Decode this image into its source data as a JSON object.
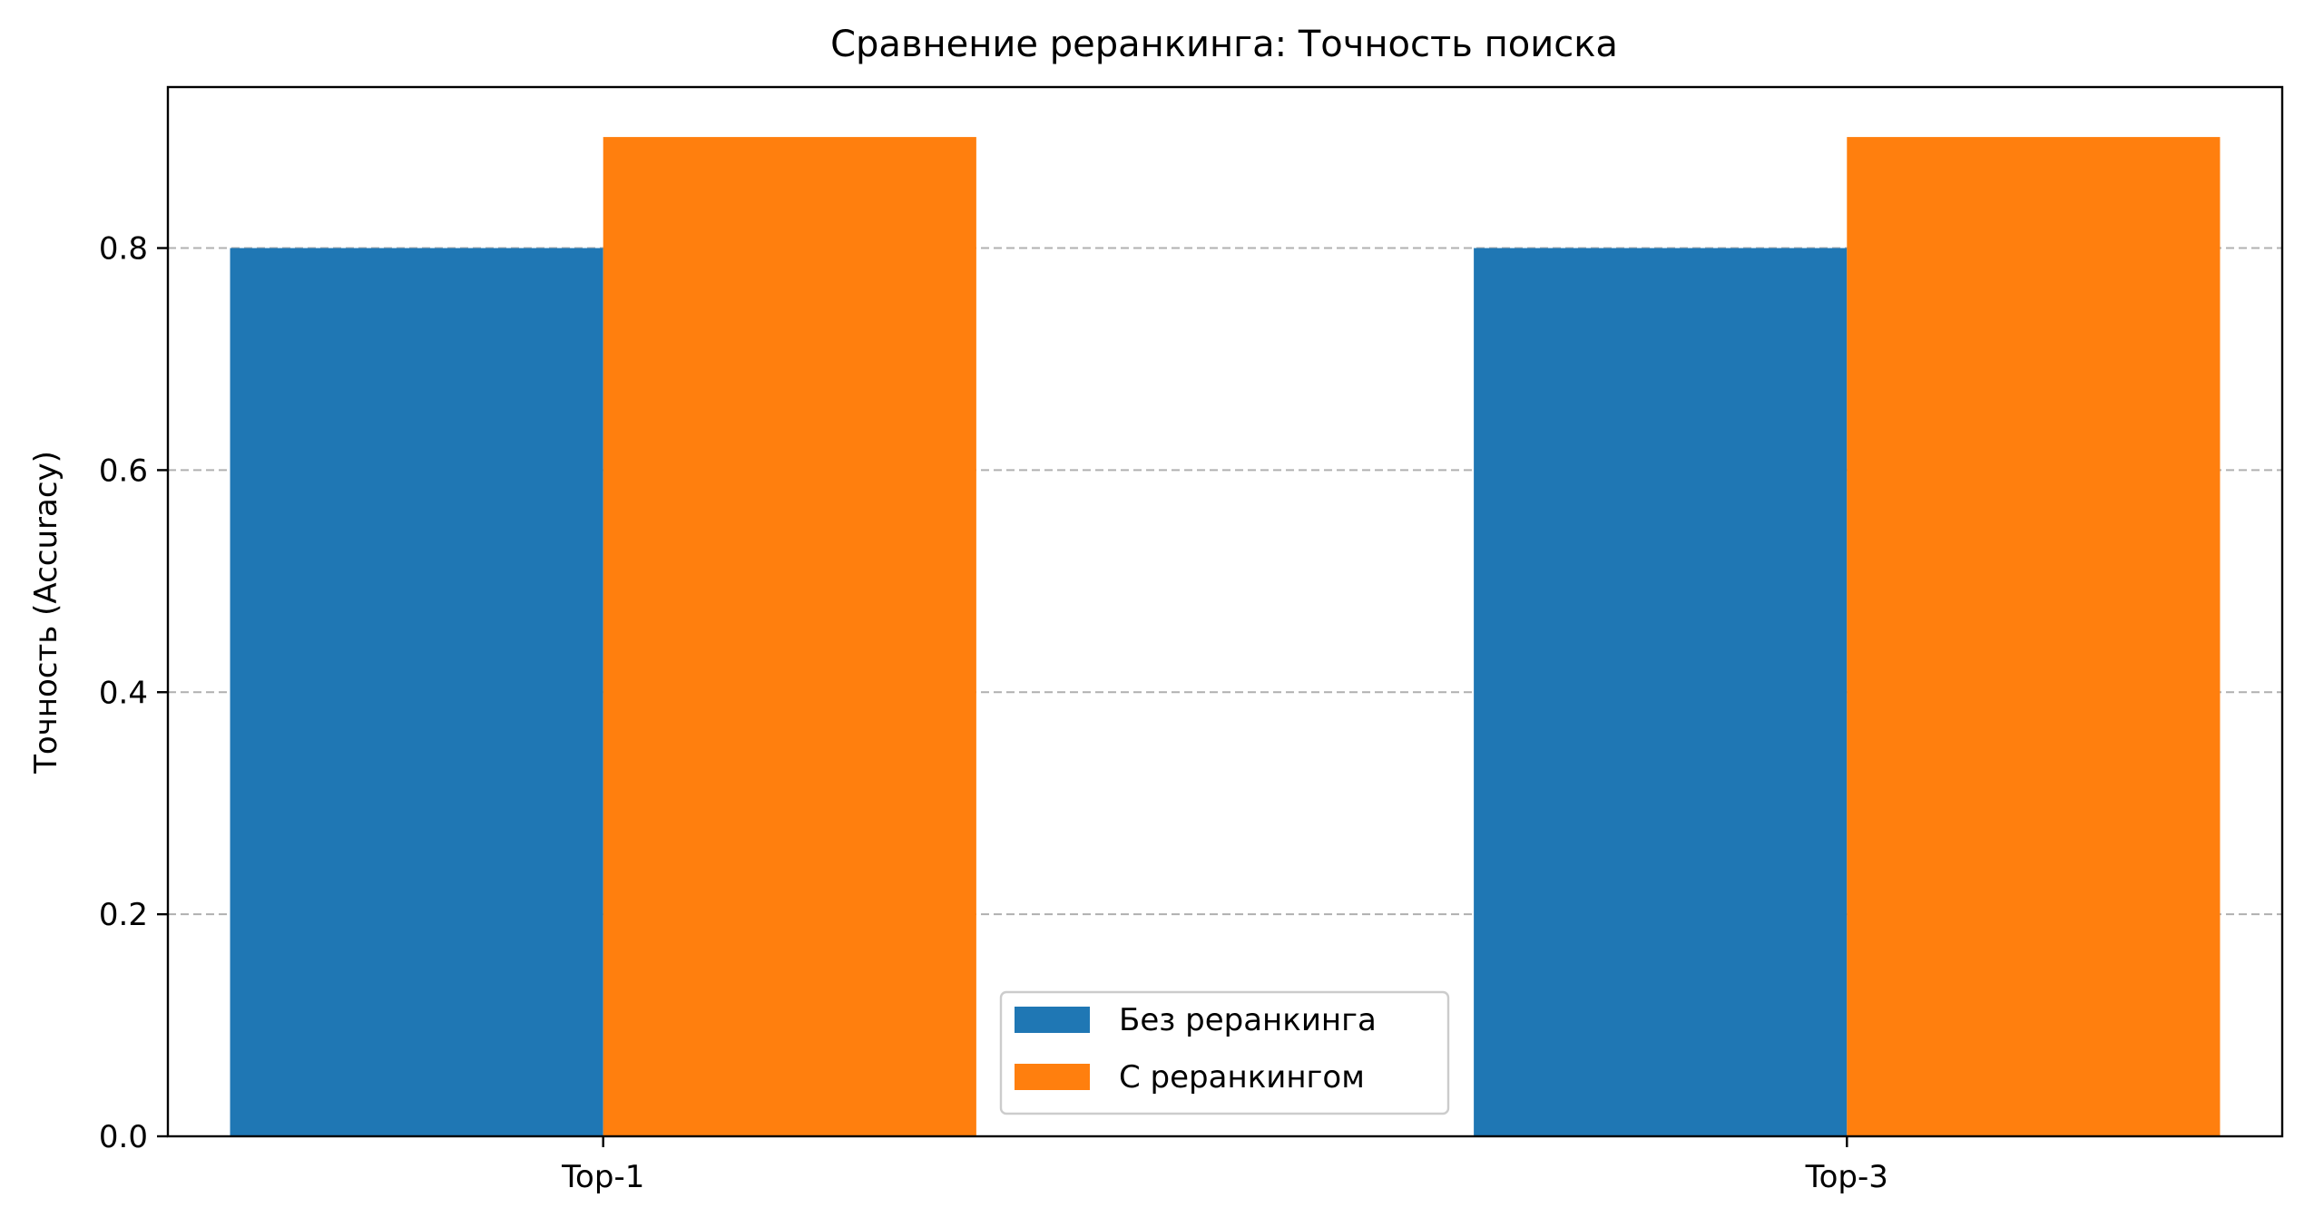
{
  "chart_data": {
    "type": "bar",
    "title": "Сравнение реранкинга: Точность поиска",
    "xlabel": "",
    "ylabel": "Точность (Accuracy)",
    "categories": [
      "Top-1",
      "Top-3"
    ],
    "series": [
      {
        "name": "Без реранкинга",
        "values": [
          0.8,
          0.8
        ],
        "color": "#1f77b4"
      },
      {
        "name": "С реранкингом",
        "values": [
          0.9,
          0.9
        ],
        "color": "#ff7f0e"
      }
    ],
    "ylim": [
      0,
      0.945
    ],
    "yticks": [
      0.0,
      0.2,
      0.4,
      0.6,
      0.8
    ],
    "ytick_labels": [
      "0.0",
      "0.2",
      "0.4",
      "0.6",
      "0.8"
    ],
    "grid": {
      "axis": "y",
      "style": "dashed",
      "color": "#b0b0b0"
    },
    "legend": {
      "placement": "lower-center"
    }
  }
}
